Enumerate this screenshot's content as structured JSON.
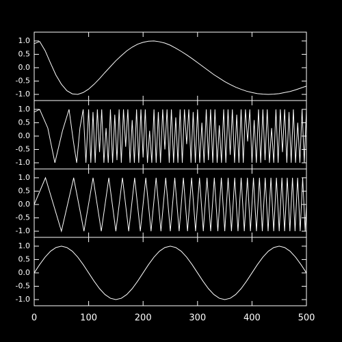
{
  "chart_data": [
    {
      "type": "line",
      "xlim": [
        0,
        500
      ],
      "ylim": [
        -1.23,
        1.33
      ],
      "yticks": [
        {
          "value": -1,
          "label": "-1.0"
        },
        {
          "value": -0.5,
          "label": "-0.5"
        },
        {
          "value": 0,
          "label": "0.0"
        },
        {
          "value": 0.5,
          "label": "0.5"
        },
        {
          "value": 1,
          "label": "1.0"
        }
      ],
      "x": [
        0,
        10,
        20,
        30,
        40,
        50,
        60,
        70,
        80,
        90,
        100,
        110,
        120,
        130,
        140,
        150,
        160,
        170,
        180,
        190,
        200,
        210,
        220,
        230,
        240,
        250,
        260,
        270,
        280,
        290,
        300,
        310,
        320,
        330,
        340,
        350,
        360,
        370,
        380,
        390,
        400,
        410,
        420,
        430,
        440,
        450,
        460,
        470,
        480,
        490,
        500
      ],
      "series": [
        {
          "color": "#ffffff",
          "values": [
            0.9,
            0.98,
            0.64,
            0.17,
            -0.28,
            -0.62,
            -0.86,
            -0.98,
            -1.0,
            -0.93,
            -0.8,
            -0.62,
            -0.41,
            -0.18,
            0.04,
            0.26,
            0.45,
            0.63,
            0.77,
            0.88,
            0.95,
            0.99,
            1.0,
            0.97,
            0.92,
            0.84,
            0.73,
            0.61,
            0.48,
            0.34,
            0.19,
            0.04,
            -0.11,
            -0.26,
            -0.39,
            -0.52,
            -0.63,
            -0.73,
            -0.81,
            -0.88,
            -0.93,
            -0.97,
            -0.99,
            -1.0,
            -0.99,
            -0.97,
            -0.93,
            -0.89,
            -0.83,
            -0.76,
            -0.69
          ]
        }
      ]
    },
    {
      "type": "line",
      "xlim": [
        0,
        500
      ],
      "ylim": [
        -1.23,
        1.33
      ],
      "yticks": [
        {
          "value": -1,
          "label": "-1.0"
        },
        {
          "value": -0.5,
          "label": "-0.5"
        },
        {
          "value": 0,
          "label": "0.0"
        },
        {
          "value": 0.5,
          "label": "0.5"
        },
        {
          "value": 1,
          "label": "1.0"
        }
      ],
      "x": [
        0,
        10,
        25,
        38,
        52,
        64,
        72,
        78,
        84,
        90,
        95,
        100,
        104,
        108,
        112,
        116,
        120,
        124,
        128,
        132,
        136,
        140,
        144,
        148,
        152,
        156,
        160,
        164,
        168,
        172,
        176,
        180,
        184,
        188,
        192,
        196,
        200,
        204,
        208,
        212,
        216,
        220,
        224,
        228,
        232,
        236,
        240,
        244,
        248,
        252,
        256,
        260,
        264,
        268,
        272,
        276,
        280,
        284,
        288,
        292,
        296,
        300,
        304,
        308,
        312,
        316,
        320,
        324,
        328,
        332,
        336,
        340,
        344,
        348,
        352,
        356,
        360,
        364,
        368,
        372,
        376,
        380,
        384,
        388,
        392,
        396,
        400,
        404,
        408,
        412,
        416,
        420,
        424,
        428,
        432,
        436,
        440,
        444,
        448,
        452,
        456,
        460,
        464,
        468,
        472,
        476,
        480,
        484,
        488,
        492,
        496,
        500
      ],
      "series": [
        {
          "color": "#ffffff",
          "values": [
            0.9,
            1,
            0.3,
            -1,
            0.2,
            1,
            -0.2,
            -1,
            0.3,
            1,
            -1,
            1,
            -1,
            0.9,
            -1,
            1,
            -0.6,
            1,
            -1,
            0.3,
            -1,
            1,
            -1,
            0.8,
            -0.9,
            1,
            -1,
            1,
            -0.4,
            1,
            -1,
            0.6,
            -1,
            1,
            -1,
            1,
            -0.8,
            1,
            -1,
            0.2,
            -1,
            1,
            -1,
            0.9,
            -1,
            1,
            -0.5,
            1,
            -1,
            1,
            -1,
            0.7,
            -1,
            1,
            -1,
            1,
            -0.3,
            1,
            -1,
            0.9,
            -1,
            1,
            -1,
            0.5,
            -1,
            1,
            -0.9,
            1,
            -1,
            1,
            -1,
            0.4,
            -1,
            1,
            -1,
            1,
            -0.7,
            1,
            -1,
            0.8,
            -1,
            1,
            -1,
            1,
            -0.2,
            1,
            -1,
            0.6,
            -1,
            1,
            -1,
            1,
            -0.9,
            1,
            -1,
            0.3,
            -1,
            1,
            -1,
            1,
            -0.6,
            1,
            -1,
            0.9,
            -1,
            1,
            -1,
            0.5,
            -1,
            1,
            -1,
            1
          ]
        }
      ]
    },
    {
      "type": "line",
      "xlim": [
        0,
        500
      ],
      "ylim": [
        -1.23,
        1.33
      ],
      "yticks": [
        {
          "value": -1,
          "label": "-1.0"
        },
        {
          "value": -0.5,
          "label": "-0.5"
        },
        {
          "value": 0,
          "label": "0.0"
        },
        {
          "value": 0.5,
          "label": "0.5"
        },
        {
          "value": 1,
          "label": "1.0"
        }
      ],
      "x": [
        0,
        20.7,
        50,
        72.5,
        91.4,
        108.1,
        123.2,
        137.1,
        150,
        162.1,
        173.6,
        184.5,
        194.9,
        205,
        214.6,
        223.9,
        232.8,
        241.6,
        250,
        258.2,
        266.2,
        274,
        281.6,
        289.1,
        296.4,
        303.6,
        310.6,
        317.4,
        324.1,
        330.8,
        337.3,
        343.7,
        350,
        356.2,
        362.3,
        368.3,
        374.3,
        380.1,
        385.9,
        391.6,
        397.2,
        402.7,
        408.2,
        413.7,
        419,
        424.3,
        429.6,
        434.8,
        439.9,
        444.9,
        450,
        455,
        459.9,
        464.8,
        469.6,
        474.4,
        479.1,
        483.8,
        488.5,
        493.1,
        497.7,
        500
      ],
      "series": [
        {
          "color": "#ffffff",
          "values": [
            0,
            1,
            -1,
            1,
            -1,
            1,
            -1,
            1,
            -1,
            1,
            -1,
            1,
            -1,
            1,
            -1,
            1,
            -1,
            1,
            -1,
            1,
            -1,
            1,
            -1,
            1,
            -1,
            1,
            -1,
            1,
            -1,
            1,
            -1,
            1,
            -1,
            1,
            -1,
            1,
            -1,
            1,
            -1,
            1,
            -1,
            1,
            -1,
            1,
            -1,
            1,
            -1,
            1,
            -1,
            1,
            -1,
            1,
            -1,
            1,
            -1,
            1,
            -1,
            1,
            -1,
            1,
            -1,
            0
          ]
        }
      ]
    },
    {
      "type": "line",
      "xlim": [
        0,
        500
      ],
      "ylim": [
        -1.23,
        1.33
      ],
      "yticks": [
        {
          "value": -1,
          "label": "-1.0"
        },
        {
          "value": -0.5,
          "label": "-0.5"
        },
        {
          "value": 0,
          "label": "0.0"
        },
        {
          "value": 0.5,
          "label": "0.5"
        },
        {
          "value": 1,
          "label": "1.0"
        }
      ],
      "xticks": [
        0,
        100,
        200,
        300,
        400,
        500
      ],
      "x": [
        0,
        10,
        20,
        30,
        40,
        50,
        60,
        70,
        80,
        90,
        100,
        110,
        120,
        130,
        140,
        150,
        160,
        170,
        180,
        190,
        200,
        210,
        220,
        230,
        240,
        250,
        260,
        270,
        280,
        290,
        300,
        310,
        320,
        330,
        340,
        350,
        360,
        370,
        380,
        390,
        400,
        410,
        420,
        430,
        440,
        450,
        460,
        470,
        480,
        490,
        500
      ],
      "series": [
        {
          "color": "#ffffff",
          "values": [
            0,
            0.31,
            0.59,
            0.81,
            0.95,
            1,
            0.95,
            0.81,
            0.59,
            0.31,
            0,
            -0.31,
            -0.59,
            -0.81,
            -0.95,
            -1,
            -0.95,
            -0.81,
            -0.59,
            -0.31,
            0,
            0.31,
            0.59,
            0.81,
            0.95,
            1,
            0.95,
            0.81,
            0.59,
            0.31,
            0,
            -0.31,
            -0.59,
            -0.81,
            -0.95,
            -1,
            -0.95,
            -0.81,
            -0.59,
            -0.31,
            0,
            0.31,
            0.59,
            0.81,
            0.95,
            1,
            0.95,
            0.81,
            0.59,
            0.31,
            0
          ]
        }
      ]
    }
  ]
}
